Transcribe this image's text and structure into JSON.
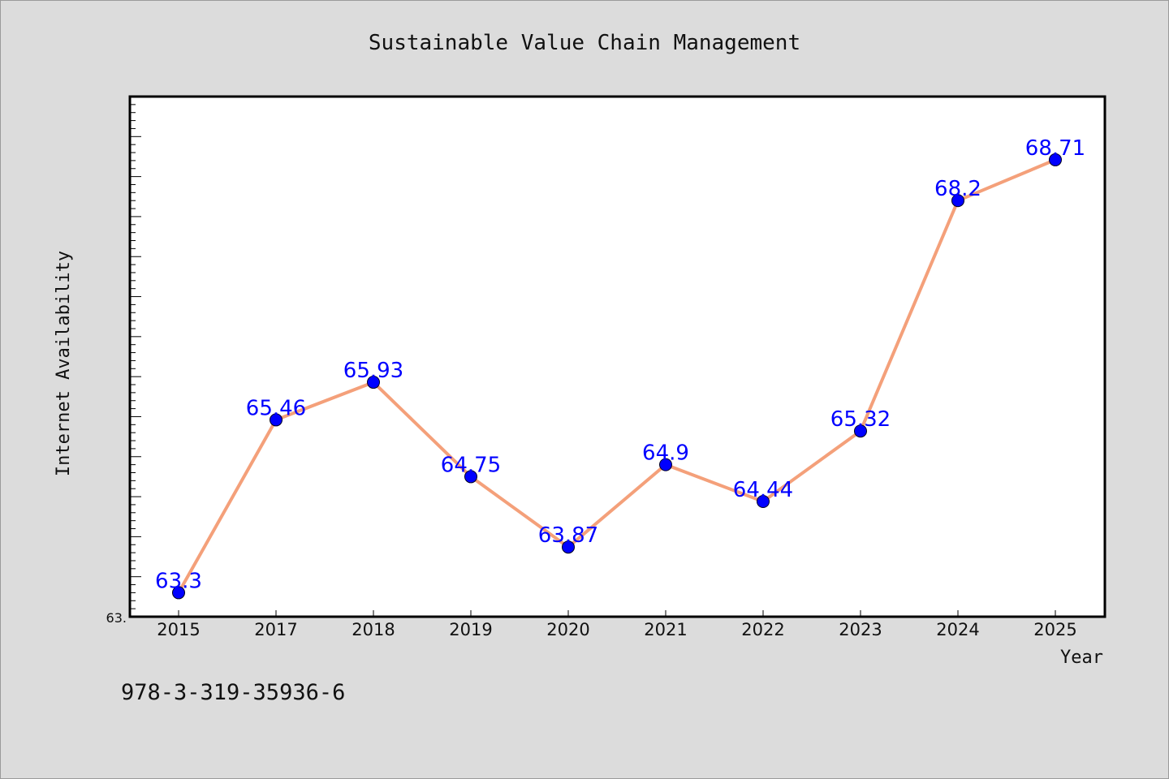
{
  "chart_data": {
    "type": "line",
    "title": "Sustainable Value Chain Management",
    "xlabel": "Year",
    "ylabel": "Internet Availability",
    "categories": [
      "2015",
      "2017",
      "2018",
      "2019",
      "2020",
      "2021",
      "2022",
      "2023",
      "2024",
      "2025"
    ],
    "values": [
      63.3,
      65.46,
      65.93,
      64.75,
      63.87,
      64.9,
      64.44,
      65.32,
      68.2,
      68.71
    ],
    "data_labels": [
      "63.3",
      "65.46",
      "65.93",
      "64.75",
      "63.87",
      "64.9",
      "64.44",
      "65.32",
      "68.2",
      "68.71"
    ],
    "ylim": [
      63.0,
      69.5
    ],
    "y_tick_label": "63.",
    "grid": false,
    "line_color": "#f4a07a",
    "marker_color": "#0000ff",
    "label_color": "#0000ff"
  },
  "footer_text": "978-3-319-35936-6"
}
